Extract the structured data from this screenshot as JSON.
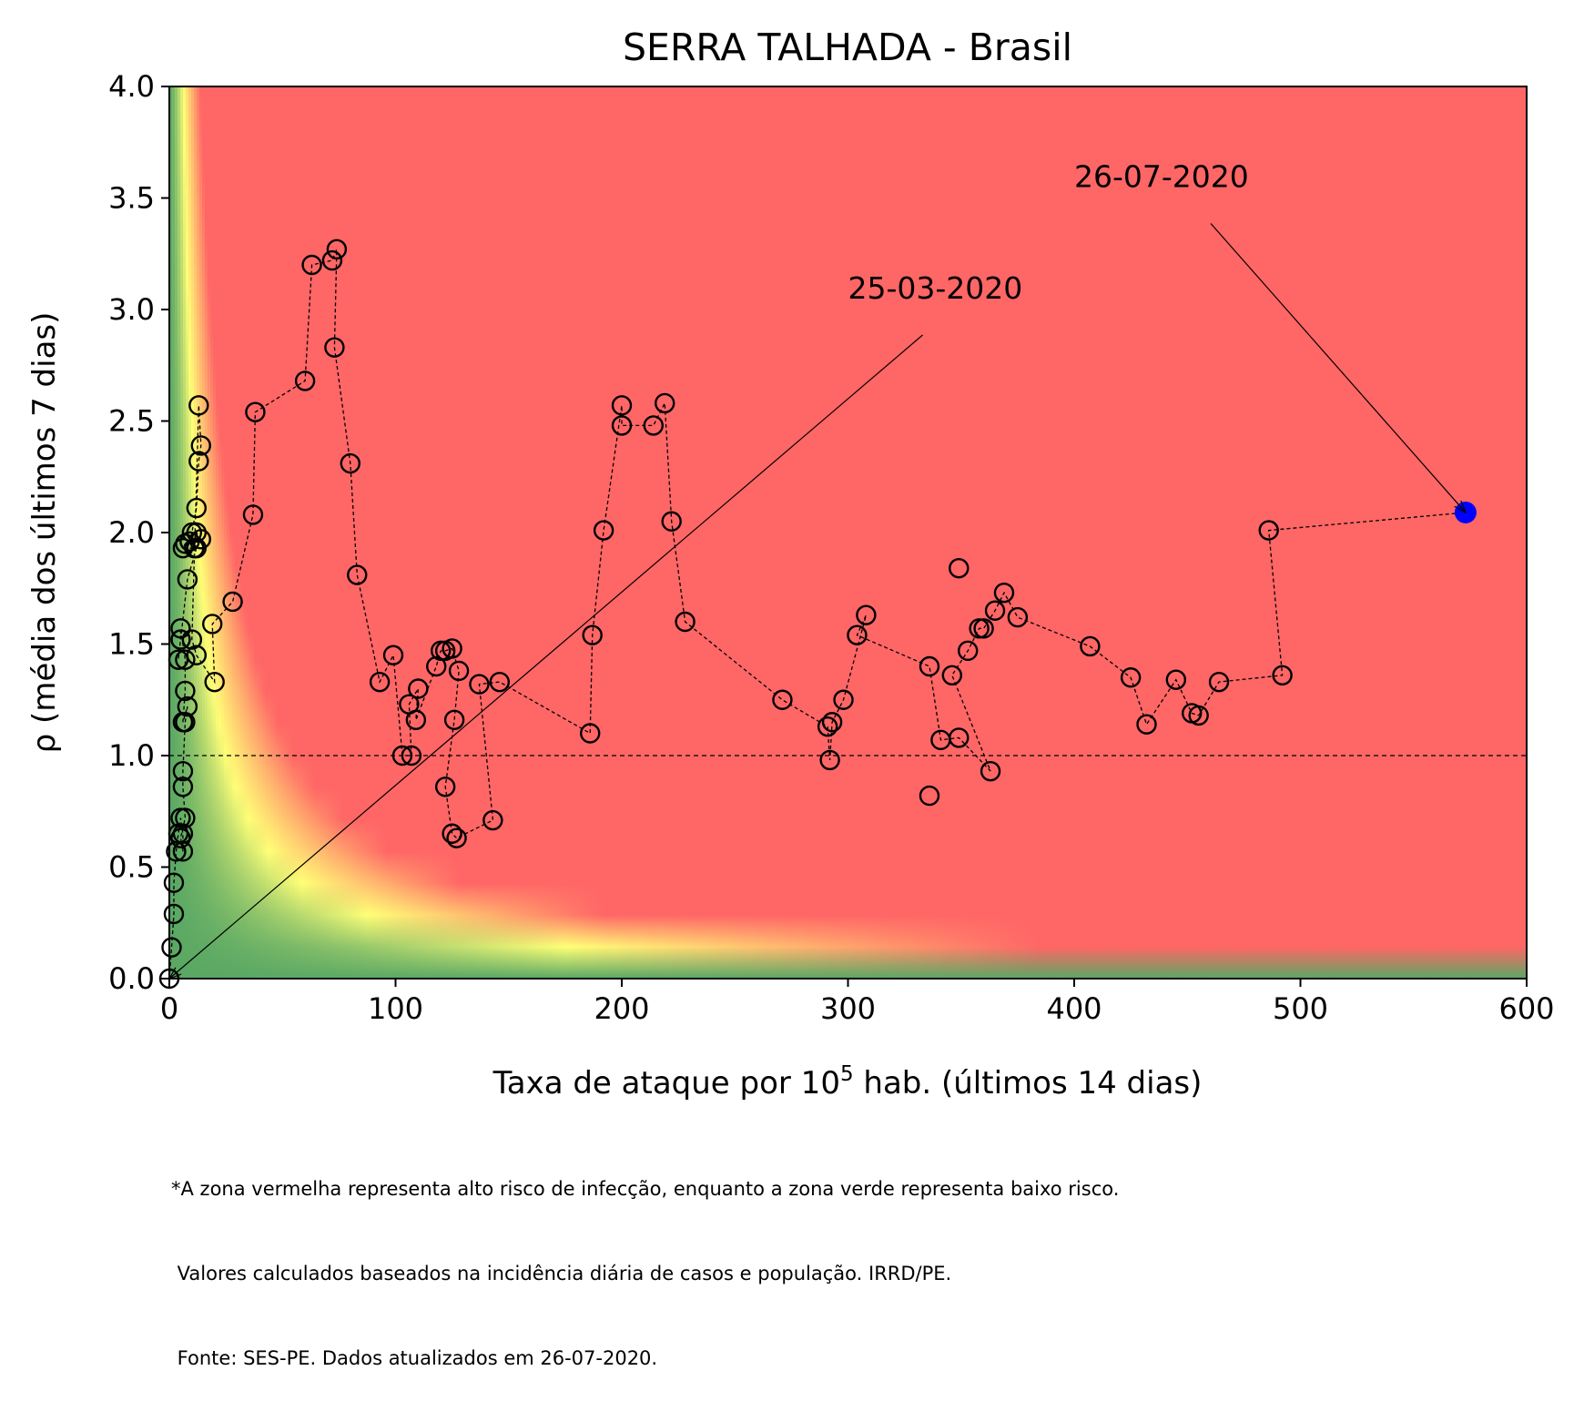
{
  "chart_data": {
    "type": "scatter",
    "title": "SERRA TALHADA - Brasil",
    "xlabel_prefix": "Taxa de ataque por 10",
    "xlabel_sup": "5",
    "xlabel_suffix": " hab. (últimos 14 dias)",
    "ylabel": "ρ (média dos últimos 7 dias)",
    "xlim": [
      0,
      600
    ],
    "ylim": [
      0,
      4.0
    ],
    "xticks": [
      0,
      100,
      200,
      300,
      400,
      500,
      600
    ],
    "yticks": [
      "0.0",
      "0.5",
      "1.0",
      "1.5",
      "2.0",
      "2.5",
      "3.0",
      "3.5",
      "4.0"
    ],
    "reference_line_y": 1.0,
    "colors": {
      "high_risk": "#ff6666",
      "mid_risk": "#ffff77",
      "low_risk": "#5aa864",
      "marker": "#000000",
      "last_point": "#0000ff"
    },
    "series": [
      {
        "x": [
          0,
          1,
          2,
          2,
          3,
          4,
          5,
          6,
          6,
          5,
          7,
          6,
          6,
          7,
          8,
          6,
          7,
          7,
          5,
          5,
          4,
          5,
          8,
          12,
          14,
          12,
          11,
          6,
          7,
          9,
          10,
          12,
          13,
          14,
          13,
          10,
          12,
          20,
          19,
          28,
          37,
          38,
          60,
          63,
          72,
          74,
          73,
          80,
          83,
          93,
          99,
          103,
          107,
          106,
          110,
          109,
          118,
          120,
          122,
          125,
          128,
          126,
          122,
          125,
          127,
          143,
          137,
          146,
          186,
          187,
          192,
          200,
          200,
          214,
          219,
          222,
          228,
          271,
          291,
          292,
          293,
          298,
          308,
          304,
          336,
          341,
          349,
          363,
          346,
          353,
          358,
          360,
          365,
          369,
          375,
          407,
          425,
          432,
          445,
          452,
          455,
          464,
          492,
          486,
          573
        ],
        "y": [
          0.0,
          0.14,
          0.29,
          0.43,
          0.57,
          0.65,
          0.72,
          0.65,
          0.57,
          0.63,
          0.72,
          0.86,
          0.93,
          1.15,
          1.22,
          1.15,
          1.29,
          1.43,
          1.57,
          1.52,
          1.43,
          1.52,
          1.79,
          1.93,
          1.97,
          2.0,
          1.93,
          1.93,
          1.95,
          1.96,
          2.0,
          2.11,
          2.32,
          2.39,
          2.57,
          1.52,
          1.45,
          1.33,
          1.59,
          1.69,
          2.08,
          2.54,
          2.68,
          3.2,
          3.22,
          3.27,
          2.83,
          2.31,
          1.81,
          1.33,
          1.45,
          1.0,
          1.0,
          1.23,
          1.3,
          1.16,
          1.4,
          1.47,
          1.47,
          1.48,
          1.38,
          1.16,
          0.86,
          0.65,
          0.63,
          0.71,
          1.32,
          1.33,
          1.1,
          1.54,
          2.01,
          2.57,
          2.48,
          2.48,
          2.58,
          2.05,
          1.6,
          1.25,
          1.13,
          0.98,
          1.15,
          1.25,
          1.63,
          1.54,
          1.4,
          1.07,
          1.08,
          0.93,
          1.36,
          1.47,
          1.57,
          1.57,
          1.65,
          1.73,
          1.62,
          1.49,
          1.35,
          1.14,
          1.34,
          1.19,
          1.18,
          1.33,
          1.36,
          2.01,
          2.09
        ]
      }
    ],
    "extra_points": [
      {
        "x": 336,
        "y": 0.82
      },
      {
        "x": 349,
        "y": 1.84
      }
    ],
    "annotations": [
      {
        "text": "25-03-2020",
        "target_x": 0,
        "target_y": 0.0,
        "text_x": 300,
        "text_y": 3.0
      },
      {
        "text": "26-07-2020",
        "target_x": 573,
        "target_y": 2.09,
        "text_x": 400,
        "text_y": 3.5
      }
    ],
    "footnote": [
      "*A zona vermelha representa alto risco de infecção, enquanto a zona verde representa baixo risco.",
      " Valores calculados baseados na incidência diária de casos e população. IRRD/PE.",
      " Fonte: SES-PE. Dados atualizados em 26-07-2020."
    ]
  }
}
